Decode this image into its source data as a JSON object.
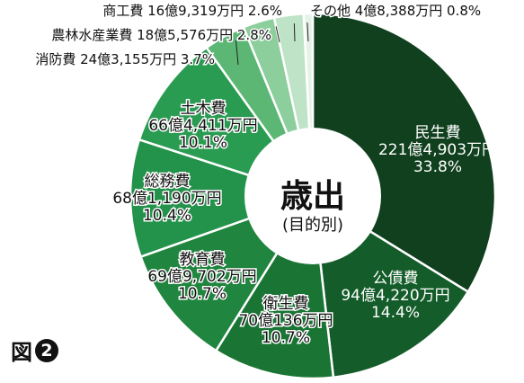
{
  "chart_data": {
    "type": "pie",
    "title": "歳出",
    "subtitle": "(目的別)",
    "slices": [
      {
        "name": "民生費",
        "value": 33.8,
        "amount": "221億4,903万円",
        "pct": "33.8%",
        "color": "#10401e",
        "label_color": "#ffffff"
      },
      {
        "name": "公債費",
        "value": 14.4,
        "amount": "94億4,220万円",
        "pct": "14.4%",
        "color": "#145c2a",
        "label_color": "#ffffff"
      },
      {
        "name": "衛生費",
        "value": 10.7,
        "amount": "70億136万円",
        "pct": "10.7%",
        "color": "#1a7535",
        "label_color": "#111111"
      },
      {
        "name": "教育費",
        "value": 10.7,
        "amount": "69億9,702万円",
        "pct": "10.7%",
        "color": "#20853e",
        "label_color": "#111111"
      },
      {
        "name": "総務費",
        "value": 10.4,
        "amount": "68億1,190万円",
        "pct": "10.4%",
        "color": "#23924a",
        "label_color": "#111111"
      },
      {
        "name": "土木費",
        "value": 10.1,
        "amount": "66億4,411万円",
        "pct": "10.1%",
        "color": "#2a9c52",
        "label_color": "#111111"
      },
      {
        "name": "消防費",
        "value": 3.7,
        "amount": "24億3,155万円",
        "pct": "3.7%",
        "color": "#5cb774",
        "label_color": "#111111"
      },
      {
        "name": "農林水産業費",
        "value": 2.8,
        "amount": "18億5,576万円",
        "pct": "2.8%",
        "color": "#8cce9c",
        "label_color": "#111111"
      },
      {
        "name": "商工費",
        "value": 2.6,
        "amount": "16億9,319万円",
        "pct": "2.6%",
        "color": "#bfe3c6",
        "label_color": "#111111"
      },
      {
        "name": "その他",
        "value": 0.8,
        "amount": "4億8,388万円",
        "pct": "0.8%",
        "color": "#e4f3e6",
        "label_color": "#111111"
      }
    ]
  },
  "figure_label": {
    "text": "図",
    "number": "2"
  }
}
